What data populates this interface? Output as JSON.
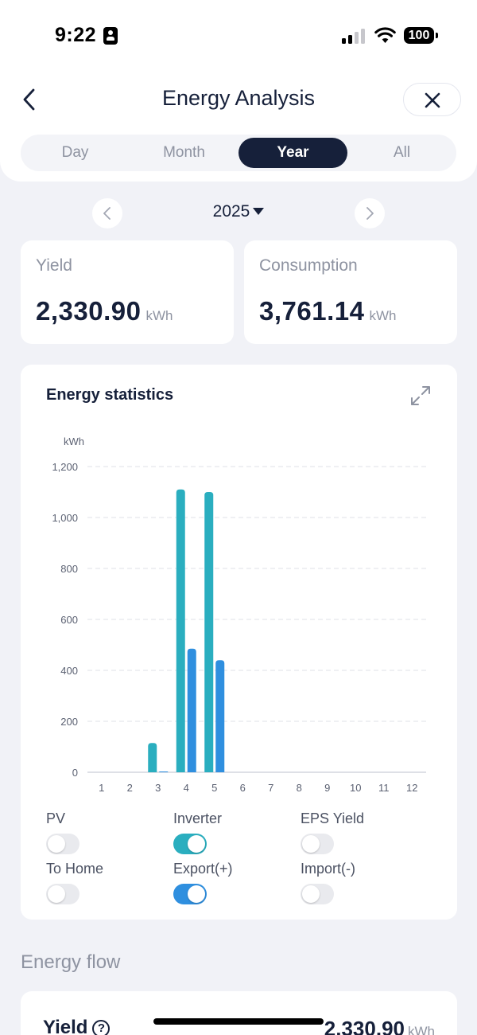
{
  "status_bar": {
    "time": "9:22",
    "battery": "100"
  },
  "header": {
    "title": "Energy Analysis"
  },
  "tabs": [
    {
      "label": "Day",
      "active": false
    },
    {
      "label": "Month",
      "active": false
    },
    {
      "label": "Year",
      "active": true
    },
    {
      "label": "All",
      "active": false
    }
  ],
  "period": {
    "year": "2025"
  },
  "summary": {
    "yield": {
      "label": "Yield",
      "value": "2,330.90",
      "unit": "kWh"
    },
    "consumption": {
      "label": "Consumption",
      "value": "3,761.14",
      "unit": "kWh"
    }
  },
  "chart_card": {
    "title": "Energy statistics"
  },
  "chart_data": {
    "type": "bar",
    "title": "Energy statistics",
    "ylabel": "kWh",
    "xlabel": "",
    "ylim": [
      0,
      1200
    ],
    "yticks": [
      0,
      200,
      400,
      600,
      800,
      1000,
      1200
    ],
    "grid": true,
    "categories": [
      "1",
      "2",
      "3",
      "4",
      "5",
      "6",
      "7",
      "8",
      "9",
      "10",
      "11",
      "12"
    ],
    "series": [
      {
        "name": "Inverter",
        "color": "#2aaebf",
        "values": [
          0,
          0,
          115,
          1110,
          1100,
          0,
          0,
          0,
          0,
          0,
          0,
          0
        ]
      },
      {
        "name": "Export(+)",
        "color": "#2f8fdf",
        "values": [
          0,
          0,
          3,
          485,
          440,
          0,
          0,
          0,
          0,
          0,
          0,
          0
        ]
      }
    ]
  },
  "legend": [
    {
      "label": "PV",
      "on": false,
      "color": "#e9eaee"
    },
    {
      "label": "Inverter",
      "on": true,
      "color": "#2aaebf"
    },
    {
      "label": "EPS Yield",
      "on": false,
      "color": "#e9eaee"
    },
    {
      "label": "To Home",
      "on": false,
      "color": "#e9eaee"
    },
    {
      "label": "Export(+)",
      "on": true,
      "color": "#2f8fdf"
    },
    {
      "label": "Import(-)",
      "on": false,
      "color": "#e9eaee"
    }
  ],
  "energy_flow": {
    "section_title": "Energy flow",
    "yield_label": "Yield",
    "help": "?",
    "yield_value": "2,330.90",
    "yield_unit": "kWh"
  }
}
